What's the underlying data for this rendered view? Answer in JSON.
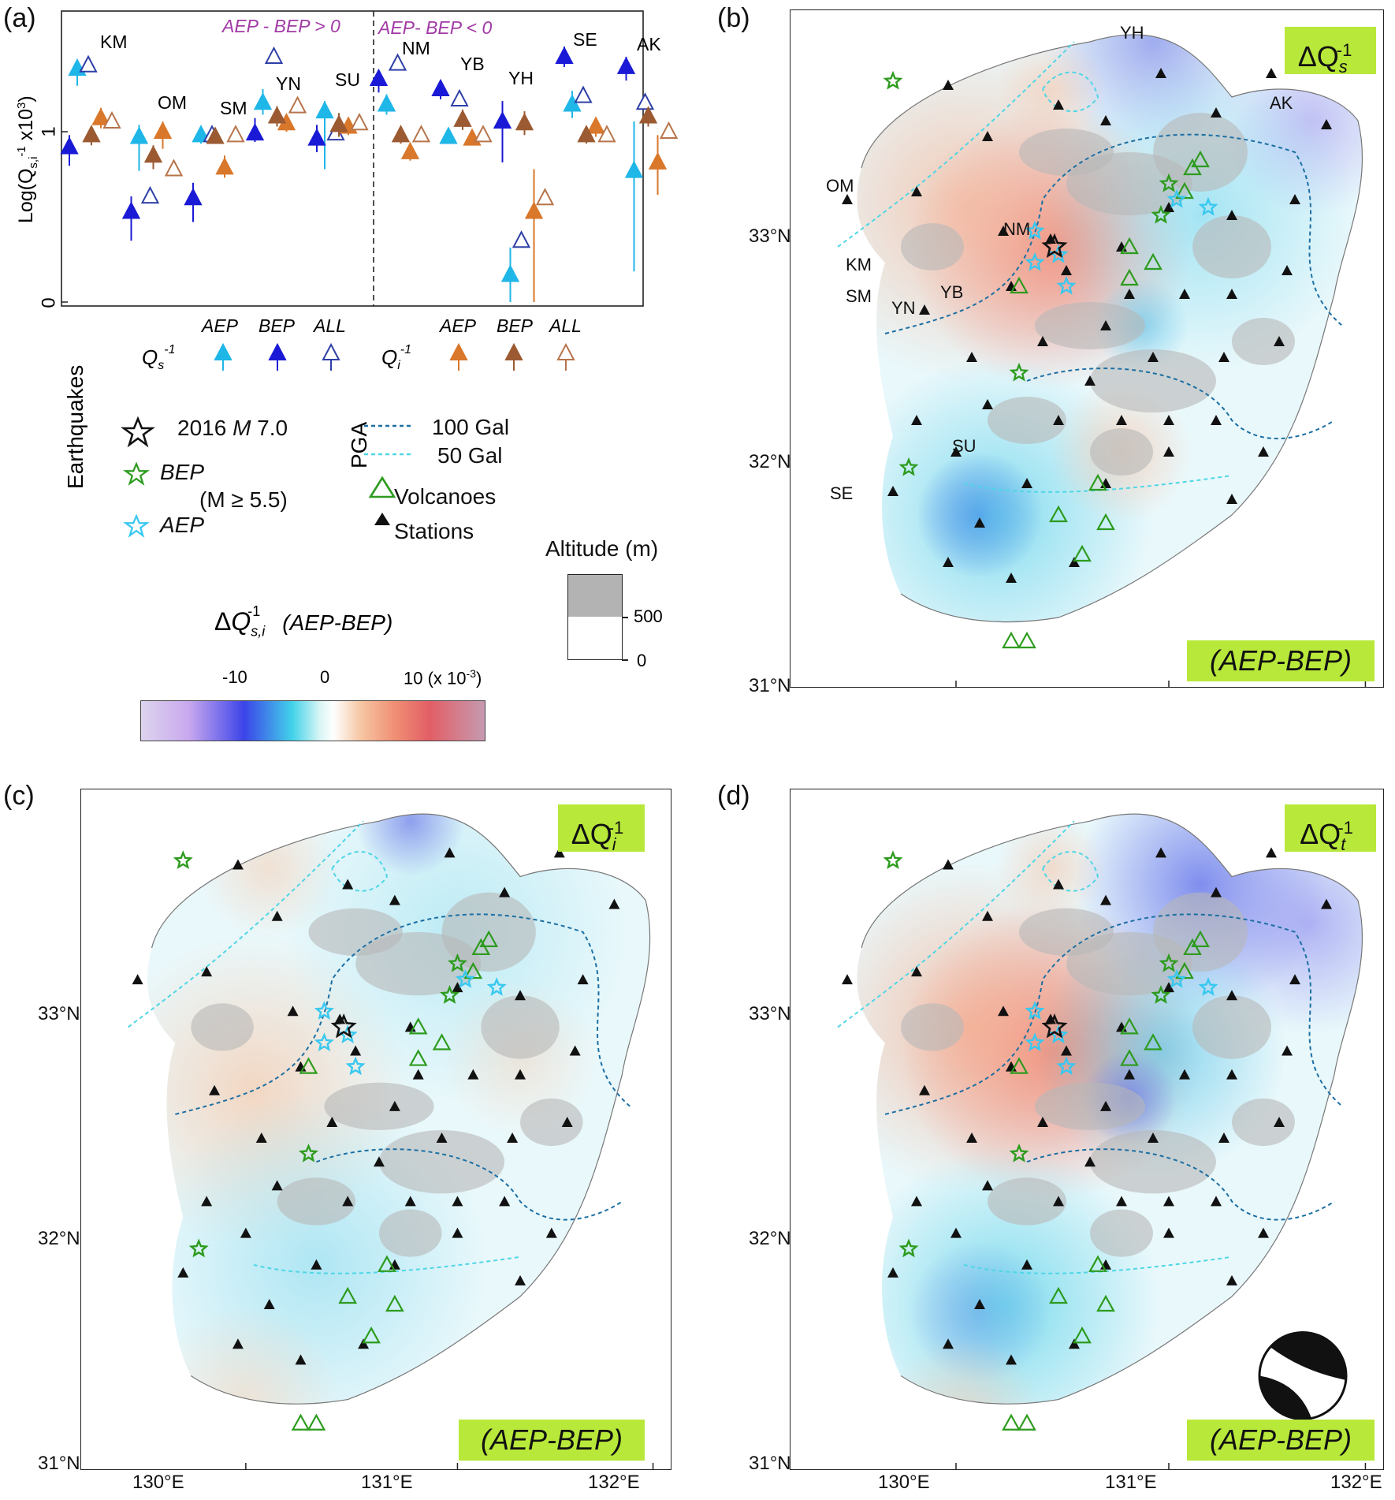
{
  "panels": {
    "a": "(a)",
    "b": "(b)",
    "c": "(c)",
    "d": "(d)"
  },
  "panel_a": {
    "ylabel": "Log(Q",
    "ylabel_sub": "s,i",
    "ylabel_sup": "-1",
    "ylabel_tail": " x10",
    "ylabel_tail_sup": "3",
    "ylabel_close": ")",
    "yticks": [
      "0",
      "1"
    ],
    "header_left": "AEP - BEP > 0",
    "header_right": "AEP- BEP < 0",
    "group_left": [
      "KM",
      "OM",
      "SM",
      "YN",
      "SU"
    ],
    "group_right": [
      "NM",
      "YB",
      "YH",
      "SE",
      "AK"
    ],
    "legend_qs": "Q",
    "legend_qs_sub": "s",
    "legend_qi": "Q",
    "legend_qi_sub": "i",
    "legend_sup": "-1",
    "legend_items": [
      "AEP",
      "BEP",
      "ALL"
    ]
  },
  "legend": {
    "earthquakes_title": "Earthquakes",
    "mainshock": "2016 ",
    "mainshock_m": "M",
    "mainshock_mag": " 7.0",
    "bep": "BEP",
    "bep_cond": "(M ≥ 5.5)",
    "aep": "AEP",
    "pga_title": "PGA",
    "pga_100": "100 Gal",
    "pga_50": "50  Gal",
    "volcanoes": "Volcanoes",
    "stations": "Stations",
    "altitude_title": "Altitude (m)",
    "altitude_ticks": [
      "500",
      "0"
    ],
    "colorbar_title_delta": "Δ",
    "colorbar_title_q": "Q",
    "colorbar_title_sub": "s,i",
    "colorbar_title_sup": "-1",
    "colorbar_title_paren": "(AEP-BEP)",
    "colorbar_ticks": [
      "-10",
      "0",
      "10"
    ],
    "colorbar_unit": "(x 10",
    "colorbar_unit_sup": "-3",
    "colorbar_unit_close": ")"
  },
  "maps": {
    "b": {
      "tag_q": "ΔQ",
      "tag_sub": "s",
      "tag_sup": "-1",
      "bottom_tag": "(AEP-BEP)"
    },
    "c": {
      "tag_q": "ΔQ",
      "tag_sub": "i",
      "tag_sup": "-1",
      "bottom_tag": "(AEP-BEP)"
    },
    "d": {
      "tag_q": "ΔQ",
      "tag_sub": "t",
      "tag_sup": "-1",
      "bottom_tag": "(AEP-BEP)"
    },
    "lat_labels": [
      "33°N",
      "32°N",
      "31°N"
    ],
    "lon_labels": [
      "130°E",
      "131°E",
      "132°E"
    ],
    "station_labels_b": [
      "YH",
      "AK",
      "OM",
      "KM",
      "SM",
      "YN",
      "YB",
      "NM",
      "SU",
      "SE"
    ]
  },
  "colors": {
    "aep_qs": "#1fb6e8",
    "bep_qs": "#1a1ad6",
    "all_qs": "#2e3fa6",
    "aep_qi": "#d9772a",
    "bep_qi": "#9b5a32",
    "all_qi": "#b7744a",
    "header_purple": "#a23aa6",
    "tag_green": "#b8e83a",
    "bep_star": "#2d9b1e",
    "aep_star": "#38c8f0",
    "volcano": "#2d9b1e"
  },
  "chart_data": {
    "type": "scatter",
    "ylabel": "Log(Qs,i-1 x10^3)",
    "yticks": [
      0,
      1
    ],
    "categories": [
      "KM",
      "OM",
      "SM",
      "YN",
      "SU",
      "NM",
      "YB",
      "YH",
      "SE",
      "AK"
    ],
    "series": [
      {
        "name": "Qs-1 AEP",
        "values": [
          1.37,
          0.97,
          0.98,
          1.17,
          1.12,
          1.16,
          0.97,
          0.16,
          1.16,
          0.77
        ]
      },
      {
        "name": "Qs-1 BEP",
        "values": [
          0.91,
          0.53,
          0.61,
          0.99,
          0.96,
          1.31,
          1.25,
          1.06,
          1.44,
          1.38
        ]
      },
      {
        "name": "Qs-1 ALL",
        "values": [
          1.39,
          0.62,
          0.98,
          1.44,
          0.99,
          1.4,
          1.19,
          0.36,
          1.21,
          1.17
        ]
      },
      {
        "name": "Qi-1 AEP",
        "values": [
          1.08,
          1.0,
          0.79,
          1.05,
          1.03,
          0.88,
          0.96,
          0.53,
          1.03,
          0.82
        ]
      },
      {
        "name": "Qi-1 BEP",
        "values": [
          0.98,
          0.86,
          0.97,
          1.09,
          1.04,
          0.98,
          1.07,
          1.05,
          0.98,
          1.09
        ]
      },
      {
        "name": "Qi-1 ALL",
        "values": [
          1.06,
          0.78,
          0.98,
          1.15,
          1.05,
          0.98,
          0.98,
          0.61,
          0.98,
          1.0
        ]
      }
    ],
    "errors": {
      "Qs-1 AEP": [
        [
          1.27,
          1.42
        ],
        [
          0.77,
          1.04
        ],
        [
          0.93,
          1.03
        ],
        [
          1.1,
          1.25
        ],
        [
          0.78,
          1.18
        ],
        [
          1.1,
          1.22
        ],
        [
          0.93,
          1.02
        ],
        [
          0.0,
          0.32
        ],
        [
          1.08,
          1.24
        ],
        [
          0.18,
          1.06
        ]
      ],
      "Qs-1 BEP": [
        [
          0.8,
          0.98
        ],
        [
          0.36,
          0.62
        ],
        [
          0.47,
          0.7
        ],
        [
          0.94,
          1.08
        ],
        [
          0.88,
          1.04
        ],
        [
          1.23,
          1.36
        ],
        [
          1.19,
          1.3
        ],
        [
          0.82,
          1.18
        ],
        [
          1.38,
          1.5
        ],
        [
          1.3,
          1.44
        ]
      ],
      "Qi-1 AEP": [
        [
          1.02,
          1.14
        ],
        [
          0.9,
          1.06
        ],
        [
          0.73,
          0.86
        ],
        [
          1.0,
          1.1
        ],
        [
          0.98,
          1.08
        ],
        [
          0.83,
          0.93
        ],
        [
          0.92,
          1.01
        ],
        [
          0.0,
          0.78
        ],
        [
          0.97,
          1.08
        ],
        [
          0.63,
          0.98
        ]
      ],
      "Qi-1 BEP": [
        [
          0.92,
          1.03
        ],
        [
          0.78,
          0.92
        ],
        [
          0.93,
          1.01
        ],
        [
          1.03,
          1.15
        ],
        [
          0.97,
          1.11
        ],
        [
          0.93,
          1.03
        ],
        [
          1.01,
          1.13
        ],
        [
          0.98,
          1.12
        ],
        [
          0.93,
          1.03
        ],
        [
          1.03,
          1.14
        ]
      ]
    },
    "group_split_label_left": "AEP - BEP > 0",
    "group_split_label_right": "AEP- BEP < 0"
  }
}
